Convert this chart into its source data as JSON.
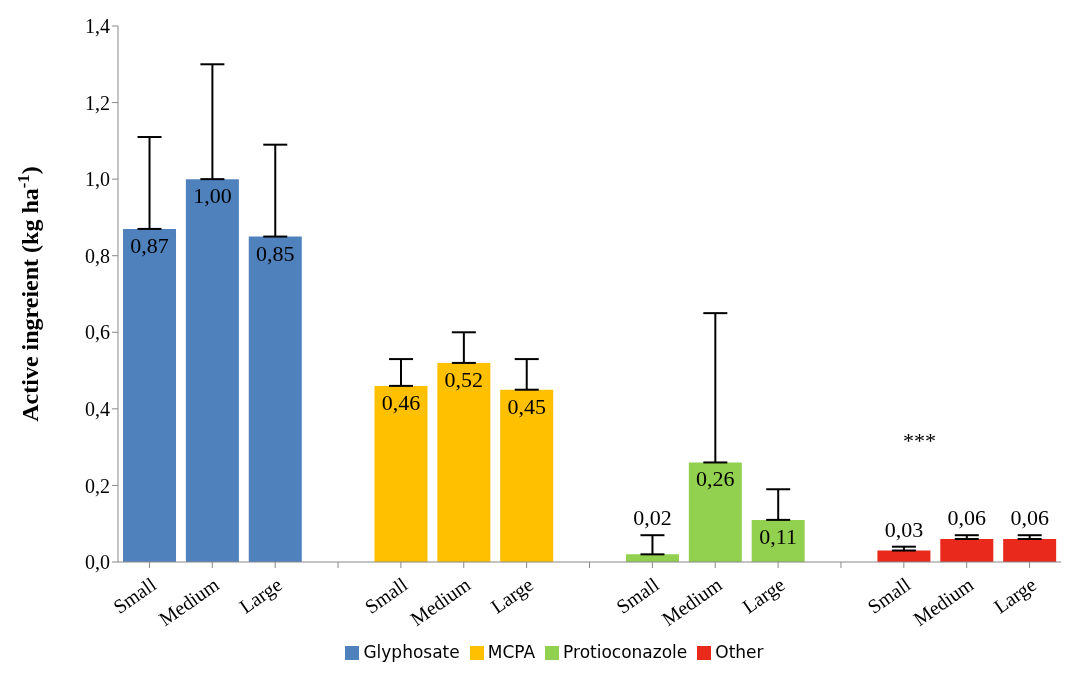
{
  "chart_data": {
    "type": "bar",
    "stacked": true,
    "ylabel": "Active ingreient (kg ha$^{-1}$)",
    "categories": [
      "Small",
      "Medium",
      "Large",
      null,
      "Small",
      "Medium",
      "Large",
      null,
      "Small",
      "Medium",
      "Large",
      null,
      "Small",
      "Medium",
      "Large"
    ],
    "series": [
      {
        "name": "Glyphosate",
        "color": "#4f81bd",
        "values": [
          0.87,
          1.0,
          0.85,
          null,
          null,
          null,
          null,
          null,
          null,
          null,
          null,
          null,
          null,
          null,
          null
        ],
        "value_labels": [
          "0,87",
          "1,00",
          "0,85",
          null,
          null,
          null,
          null,
          null,
          null,
          null,
          null,
          null,
          null,
          null,
          null
        ],
        "errors": [
          [
            0.87,
            1.11
          ],
          [
            1.0,
            1.3
          ],
          [
            0.85,
            1.09
          ],
          null,
          null,
          null,
          null,
          null,
          null,
          null,
          null,
          null,
          null,
          null,
          null
        ]
      },
      {
        "name": "MCPA",
        "color": "#ffc000",
        "values": [
          null,
          null,
          null,
          null,
          0.46,
          0.52,
          0.45,
          null,
          null,
          null,
          null,
          null,
          null,
          null,
          null
        ],
        "value_labels": [
          null,
          null,
          null,
          null,
          "0,46",
          "0,52",
          "0,45",
          null,
          null,
          null,
          null,
          null,
          null,
          null,
          null
        ],
        "errors": [
          null,
          null,
          null,
          null,
          [
            0.46,
            0.53
          ],
          [
            0.52,
            0.6
          ],
          [
            0.45,
            0.53
          ],
          null,
          null,
          null,
          null,
          null,
          null,
          null,
          null
        ]
      },
      {
        "name": "Protioconazole",
        "color": "#92d050",
        "values": [
          null,
          null,
          null,
          null,
          null,
          null,
          null,
          null,
          0.02,
          0.26,
          0.11,
          null,
          null,
          null,
          null
        ],
        "value_labels": [
          null,
          null,
          null,
          null,
          null,
          null,
          null,
          null,
          "0,02",
          "0,26",
          "0,11",
          null,
          null,
          null,
          null
        ],
        "errors": [
          null,
          null,
          null,
          null,
          null,
          null,
          null,
          null,
          [
            0.02,
            0.07
          ],
          [
            0.26,
            0.65
          ],
          [
            0.11,
            0.19
          ],
          null,
          null,
          null,
          null
        ]
      },
      {
        "name": "Other",
        "color": "#e8291c",
        "values": [
          null,
          null,
          null,
          null,
          null,
          null,
          null,
          null,
          null,
          null,
          null,
          null,
          0.03,
          0.06,
          0.06
        ],
        "value_labels": [
          null,
          null,
          null,
          null,
          null,
          null,
          null,
          null,
          null,
          null,
          null,
          null,
          "0,03",
          "0,06",
          "0,06"
        ],
        "errors": [
          null,
          null,
          null,
          null,
          null,
          null,
          null,
          null,
          null,
          null,
          null,
          null,
          [
            0.03,
            0.04
          ],
          [
            0.06,
            0.07
          ],
          [
            0.06,
            0.07
          ]
        ]
      }
    ],
    "ylim": [
      0,
      1.4
    ],
    "yticks": [
      {
        "value": 0,
        "label": "0,0"
      },
      {
        "value": 0.2,
        "label": "0,2"
      },
      {
        "value": 0.4,
        "label": "0,4"
      },
      {
        "value": 0.6,
        "label": "0,6"
      },
      {
        "value": 0.8,
        "label": "0,8"
      },
      {
        "value": 1.0,
        "label": "1,0"
      },
      {
        "value": 1.2,
        "label": "1,2"
      },
      {
        "value": 1.4,
        "label": "1,4"
      }
    ],
    "annotations": [
      "***"
    ],
    "grid": false,
    "legend": "bottom"
  }
}
